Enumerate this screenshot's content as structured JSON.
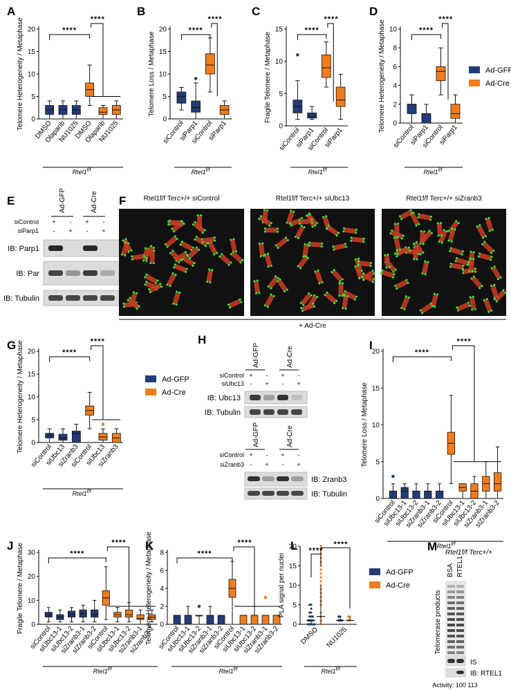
{
  "colors": {
    "ad_gfp": "#233c78",
    "ad_cre": "#f07c1e",
    "outline": "#222222"
  },
  "legend": {
    "ad_gfp": "Ad-GFP",
    "ad_cre": "Ad-Cre"
  },
  "panels": {
    "A": "A",
    "B": "B",
    "C": "C",
    "D": "D",
    "E": "E",
    "F": "F",
    "G": "G",
    "H": "H",
    "I": "I",
    "J": "J",
    "K": "K",
    "L": "L",
    "M": "M"
  },
  "genotype": "Rtel1f/f",
  "significance": "****",
  "chart_data": [
    {
      "id": "A",
      "type": "box",
      "ylabel": "Telomere Heterogeneity / Metaphase",
      "ylim": [
        0,
        20
      ],
      "yticks": [
        0,
        5,
        10,
        15,
        20
      ],
      "categories": [
        "DMSO",
        "Olaparib",
        "NU1025",
        "DMSO",
        "Olaparib",
        "NU1025"
      ],
      "series_index": [
        0,
        0,
        0,
        1,
        1,
        1
      ],
      "boxes": [
        {
          "min": 0,
          "q1": 1,
          "med": 2,
          "q3": 3,
          "max": 4
        },
        {
          "min": 0,
          "q1": 1,
          "med": 2,
          "q3": 3,
          "max": 4
        },
        {
          "min": 0,
          "q1": 1,
          "med": 2,
          "q3": 3,
          "max": 4
        },
        {
          "min": 3,
          "q1": 5,
          "med": 6.5,
          "q3": 8,
          "max": 12
        },
        {
          "min": 0,
          "q1": 1,
          "med": 1.5,
          "q3": 2.5,
          "max": 3
        },
        {
          "min": 0,
          "q1": 1,
          "med": 2,
          "q3": 3,
          "max": 4
        }
      ]
    },
    {
      "id": "B",
      "type": "box",
      "ylabel": "Telomere Loss / Metaphase",
      "ylim": [
        0,
        20
      ],
      "yticks": [
        0,
        5,
        10,
        15,
        20
      ],
      "categories": [
        "siControl",
        "siParp1",
        "siControl",
        "siParp1"
      ],
      "series_index": [
        0,
        0,
        1,
        1
      ],
      "boxes": [
        {
          "min": 2,
          "q1": 3.5,
          "med": 5,
          "q3": 6,
          "max": 7
        },
        {
          "min": 0,
          "q1": 1.5,
          "med": 2.5,
          "q3": 4,
          "max": 8,
          "outliers": [
            9
          ]
        },
        {
          "min": 6,
          "q1": 10,
          "med": 12,
          "q3": 14.5,
          "max": 18
        },
        {
          "min": 0,
          "q1": 1,
          "med": 2,
          "q3": 3,
          "max": 4
        }
      ]
    },
    {
      "id": "C",
      "type": "box",
      "ylabel": "Fragile Telomere / Metaphase",
      "ylim": [
        0,
        15
      ],
      "yticks": [
        0,
        5,
        10,
        15
      ],
      "categories": [
        "siControl",
        "siParp1",
        "siControl",
        "siParp1"
      ],
      "series_index": [
        0,
        0,
        1,
        1
      ],
      "boxes": [
        {
          "min": 1,
          "q1": 2,
          "med": 3,
          "q3": 4,
          "max": 7,
          "outliers": [
            11
          ]
        },
        {
          "min": 1,
          "q1": 1.2,
          "med": 1.5,
          "q3": 2,
          "max": 3
        },
        {
          "min": 6,
          "q1": 7.5,
          "med": 9,
          "q3": 11,
          "max": 13
        },
        {
          "min": 1,
          "q1": 3,
          "med": 4,
          "q3": 6,
          "max": 8
        }
      ]
    },
    {
      "id": "D",
      "type": "box",
      "ylabel": "Telomere Heterogeneity / Metaphase",
      "ylim": [
        0,
        10
      ],
      "yticks": [
        0,
        2,
        4,
        6,
        8,
        10
      ],
      "categories": [
        "siControl",
        "siParp1",
        "siControl",
        "siParp1"
      ],
      "series_index": [
        0,
        0,
        1,
        1
      ],
      "boxes": [
        {
          "min": 0,
          "q1": 1,
          "med": 2,
          "q3": 2,
          "max": 3
        },
        {
          "min": 0,
          "q1": 0,
          "med": 1,
          "q3": 1,
          "max": 2
        },
        {
          "min": 3,
          "q1": 4.5,
          "med": 5.5,
          "q3": 6,
          "max": 8
        },
        {
          "min": 0,
          "q1": 0.5,
          "med": 1,
          "q3": 2,
          "max": 3
        }
      ]
    },
    {
      "id": "G",
      "type": "box",
      "ylabel": "Telomere Heterogeneity / Metaphase",
      "ylim": [
        0,
        20
      ],
      "yticks": [
        0,
        5,
        10,
        15,
        20
      ],
      "categories": [
        "siControl",
        "siUbc13",
        "siZranb3",
        "siControl",
        "siUbc13",
        "siZranb3"
      ],
      "series_index": [
        0,
        0,
        0,
        1,
        1,
        1
      ],
      "boxes": [
        {
          "min": 0,
          "q1": 1,
          "med": 1.5,
          "q3": 2,
          "max": 3
        },
        {
          "min": 0,
          "q1": 0.5,
          "med": 1,
          "q3": 1.8,
          "max": 3
        },
        {
          "min": 0,
          "q1": 0,
          "med": 2,
          "q3": 2.5,
          "max": 4
        },
        {
          "min": 3,
          "q1": 6,
          "med": 7,
          "q3": 8,
          "max": 11
        },
        {
          "min": 0,
          "q1": 0.5,
          "med": 1.2,
          "q3": 2,
          "max": 3,
          "outliers": [
            4
          ]
        },
        {
          "min": 0,
          "q1": 0,
          "med": 1,
          "q3": 2,
          "max": 3
        }
      ]
    },
    {
      "id": "I",
      "type": "box",
      "ylabel": "Telomere Loss / Metaphase",
      "ylim": [
        0,
        20
      ],
      "yticks": [
        0,
        5,
        10,
        15,
        20
      ],
      "categories": [
        "siControl",
        "siUbc13-1",
        "siUbc13-2",
        "siZranb3-1",
        "siZranb3-2",
        "siControl",
        "siUbc13-1",
        "siUbc13-2",
        "siZranb3-1",
        "siZranb3-2"
      ],
      "series_index": [
        0,
        0,
        0,
        0,
        0,
        1,
        1,
        1,
        1,
        1
      ],
      "boxes": [
        {
          "min": 0,
          "q1": 0,
          "med": 1,
          "q3": 1,
          "max": 2,
          "outliers": [
            3
          ]
        },
        {
          "min": 0,
          "q1": 0,
          "med": 1,
          "q3": 1.5,
          "max": 2
        },
        {
          "min": 0,
          "q1": 0,
          "med": 1,
          "q3": 1,
          "max": 2
        },
        {
          "min": 0,
          "q1": 0,
          "med": 1,
          "q3": 1,
          "max": 2
        },
        {
          "min": 0,
          "q1": 0,
          "med": 1,
          "q3": 1,
          "max": 2
        },
        {
          "min": 2,
          "q1": 6,
          "med": 7.5,
          "q3": 9,
          "max": 14
        },
        {
          "min": 0,
          "q1": 1,
          "med": 1.5,
          "q3": 2,
          "max": 2
        },
        {
          "min": 0,
          "q1": 0,
          "med": 1,
          "q3": 2,
          "max": 3
        },
        {
          "min": 0,
          "q1": 1,
          "med": 2,
          "q3": 3,
          "max": 5
        },
        {
          "min": 0,
          "q1": 1,
          "med": 2,
          "q3": 3.5,
          "max": 7
        }
      ]
    },
    {
      "id": "J",
      "type": "box",
      "ylabel": "Fragile Telomere / Metaphase",
      "ylim": [
        0,
        30
      ],
      "yticks": [
        0,
        10,
        20,
        30
      ],
      "categories": [
        "siControl",
        "siUbc13-1",
        "siUbc13-2",
        "siZranb3-1",
        "siZranb3-2",
        "siControl",
        "siUbc13-1",
        "siUbc13-2",
        "siZranb3-1",
        "siZranb3-2"
      ],
      "series_index": [
        0,
        0,
        0,
        0,
        0,
        1,
        1,
        1,
        1,
        1
      ],
      "boxes": [
        {
          "min": 1,
          "q1": 3,
          "med": 4,
          "q3": 5,
          "max": 7
        },
        {
          "min": 1,
          "q1": 2,
          "med": 3,
          "q3": 4,
          "max": 6
        },
        {
          "min": 1,
          "q1": 3,
          "med": 4,
          "q3": 5.5,
          "max": 7
        },
        {
          "min": 1,
          "q1": 3,
          "med": 4.5,
          "q3": 6,
          "max": 8
        },
        {
          "min": 1,
          "q1": 3,
          "med": 4,
          "q3": 6,
          "max": 10
        },
        {
          "min": 2,
          "q1": 8,
          "med": 11,
          "q3": 14,
          "max": 24
        },
        {
          "min": 1,
          "q1": 3,
          "med": 4,
          "q3": 5,
          "max": 7
        },
        {
          "min": 1,
          "q1": 3,
          "med": 4,
          "q3": 6,
          "max": 9
        },
        {
          "min": 0,
          "q1": 2,
          "med": 2.5,
          "q3": 4,
          "max": 6
        },
        {
          "min": 1,
          "q1": 2,
          "med": 3,
          "q3": 4,
          "max": 6
        }
      ]
    },
    {
      "id": "K",
      "type": "box",
      "ylabel": "Telomere Heterogeneity / Metaphase",
      "ylim": [
        0,
        8
      ],
      "yticks": [
        0,
        2,
        4,
        6,
        8
      ],
      "categories": [
        "siControl",
        "siUbc13-1",
        "siUbc13-2",
        "siZranb3-1",
        "siZranb3-2",
        "siControl",
        "siUbc13-1",
        "siUbc13-2",
        "siZranb3-1",
        "siZranb3-2"
      ],
      "series_index": [
        0,
        0,
        0,
        0,
        0,
        1,
        1,
        1,
        1,
        1
      ],
      "boxes": [
        {
          "min": 0,
          "q1": 0,
          "med": 1,
          "q3": 1,
          "max": 1
        },
        {
          "min": 0,
          "q1": 0,
          "med": 1,
          "q3": 1,
          "max": 2
        },
        {
          "min": 0,
          "q1": 1,
          "med": 1,
          "q3": 1,
          "max": 1,
          "outliers": [
            2
          ]
        },
        {
          "min": 0,
          "q1": 0,
          "med": 1,
          "q3": 1,
          "max": 2
        },
        {
          "min": 0,
          "q1": 0,
          "med": 1,
          "q3": 1,
          "max": 1
        },
        {
          "min": 0,
          "q1": 3,
          "med": 4,
          "q3": 5,
          "max": 7
        },
        {
          "min": 0,
          "q1": 0,
          "med": 1,
          "q3": 1,
          "max": 1
        },
        {
          "min": 0,
          "q1": 0,
          "med": 1,
          "q3": 1,
          "max": 2
        },
        {
          "min": 0,
          "q1": 0,
          "med": 1,
          "q3": 1,
          "max": 1,
          "outliers": [
            3
          ]
        },
        {
          "min": 0,
          "q1": 0,
          "med": 1,
          "q3": 1,
          "max": 1
        }
      ]
    },
    {
      "id": "L",
      "type": "scatter",
      "ylabel": "PLA signal per nuclei",
      "ylim": [
        0,
        20
      ],
      "yticks": [
        0,
        5,
        10,
        15,
        20
      ],
      "categories": [
        "DMSO",
        "NU1025"
      ],
      "groups": [
        {
          "category": 0,
          "series": 0,
          "median": 1,
          "q1": 0,
          "q3": 1,
          "points": [
            0,
            0,
            0,
            0,
            0,
            1,
            1,
            1,
            1,
            2,
            2,
            2,
            3,
            3,
            4,
            5,
            5
          ]
        },
        {
          "category": 0,
          "series": 1,
          "median": 2,
          "q1": 0,
          "q3": 10,
          "points": [
            0,
            1,
            2,
            3,
            5,
            6,
            7,
            8,
            9,
            10,
            11,
            12,
            13,
            14,
            15,
            16,
            17,
            18,
            19,
            20
          ]
        },
        {
          "category": 1,
          "series": 0,
          "median": 1,
          "q1": 1,
          "q3": 2,
          "points": [
            1,
            1,
            1,
            2,
            2
          ]
        },
        {
          "category": 1,
          "series": 1,
          "median": 1,
          "q1": 1,
          "q3": 2,
          "points": [
            1,
            1,
            2,
            2
          ]
        }
      ]
    }
  ],
  "panelE": {
    "headers": [
      "Ad-GFP",
      "Ad-Cre"
    ],
    "rows": [
      {
        "label": "siControl",
        "marks": [
          "+",
          "-",
          "+",
          "-"
        ]
      },
      {
        "label": "siParp1",
        "marks": [
          "-",
          "+",
          "-",
          "+"
        ]
      }
    ],
    "blots": [
      "IB: Parp1",
      "IB: Par",
      "IB: Tubulin"
    ]
  },
  "panelF": {
    "titles": [
      "Rtel1f/f Terc+/+ siControl",
      "Rtel1f/f Terc+/+ siUbc13",
      "Rtel1f/f Terc+/+ siZranb3"
    ],
    "caption": "+ Ad-Cre"
  },
  "panelH": {
    "headers": [
      "Ad-GFP",
      "Ad-Cre"
    ],
    "top_rows": [
      {
        "label": "siControl",
        "marks": [
          "+",
          "-",
          "+",
          "-"
        ]
      },
      {
        "label": "siUbc13",
        "marks": [
          "-",
          "+",
          "-",
          "+"
        ]
      }
    ],
    "top_blots": [
      "IB: Ubc13",
      "IB: Tubulin"
    ],
    "bottom_rows": [
      {
        "label": "siControl",
        "marks": [
          "+",
          "-",
          "+",
          "-"
        ]
      },
      {
        "label": "siZranb3",
        "marks": [
          "-",
          "+",
          "-",
          "+"
        ]
      }
    ],
    "bottom_blots": [
      "IB: Zranb3",
      "IB: Tubulin"
    ]
  },
  "panelM": {
    "title": "Rtel1f/f Terc+/+",
    "lanes": [
      "BSA",
      "RTEL1"
    ],
    "ylabel": "Telomerase products",
    "labels": [
      "IS",
      "IB: RTEL1"
    ],
    "activity": "Activity: 100 113"
  }
}
